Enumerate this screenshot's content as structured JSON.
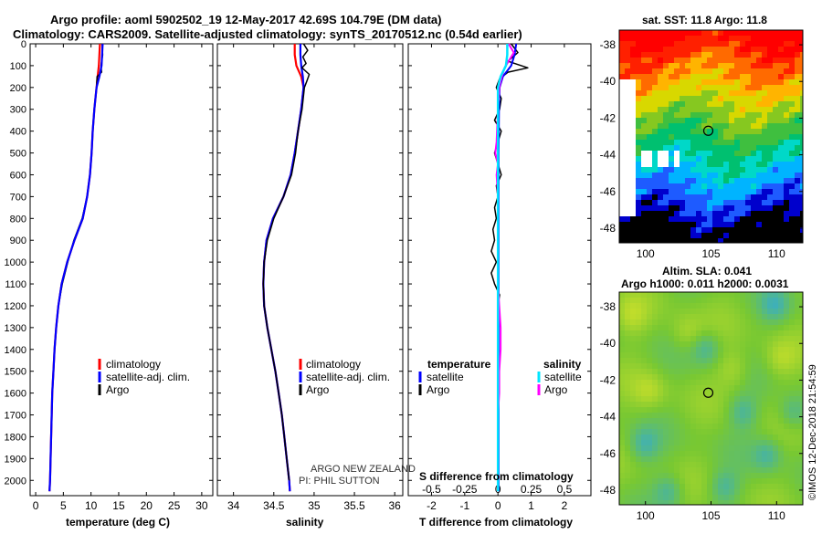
{
  "header": {
    "line1": "Argo profile: aoml 5902502_19 12-May-2017 42.69S 104.79E (DM data)",
    "line2": "Climatology: CARS2009. Satellite-adjusted climatology: synTS_20170512.nc (0.54d earlier)"
  },
  "depth_ticks": [
    0,
    100,
    200,
    300,
    400,
    500,
    600,
    700,
    800,
    900,
    1000,
    1100,
    1200,
    1300,
    1400,
    1500,
    1600,
    1700,
    1800,
    1900,
    2000
  ],
  "colors": {
    "climatology": "#ff0000",
    "satellite": "#0000ff",
    "argo": "#000000",
    "sat_salinity": "#00e5ff",
    "argo_salinity": "#ff00ff"
  },
  "chart_data": [
    {
      "type": "line",
      "id": "temperature",
      "xlabel": "temperature (deg C)",
      "ylabel": "depth",
      "xlim": [
        -1,
        32
      ],
      "ylim": [
        0,
        2070
      ],
      "xticks": [
        "0",
        "5",
        "10",
        "15",
        "20",
        "25",
        "30"
      ],
      "legend": [
        "climatology",
        "satellite-adj. clim.",
        "Argo"
      ],
      "series": [
        {
          "name": "climatology",
          "depth": [
            0,
            50,
            100,
            150,
            200,
            300,
            400,
            500,
            600,
            700,
            800,
            900,
            1000,
            1100,
            1200,
            1300,
            1400,
            1500,
            1600,
            1700,
            1800,
            1900,
            2000,
            2050
          ],
          "values": [
            11.6,
            11.5,
            11.4,
            11.2,
            11.0,
            10.6,
            10.3,
            10.1,
            9.8,
            9.3,
            8.5,
            7.0,
            5.7,
            4.7,
            4.1,
            3.7,
            3.4,
            3.2,
            3.0,
            2.9,
            2.8,
            2.7,
            2.6,
            2.5
          ]
        },
        {
          "name": "satellite-adj. clim.",
          "depth": [
            0,
            50,
            100,
            150,
            200,
            300,
            400,
            500,
            600,
            700,
            800,
            900,
            1000,
            1100,
            1200,
            1300,
            1400,
            1500,
            1600,
            1700,
            1800,
            1900,
            2000,
            2050
          ],
          "values": [
            12.1,
            12.0,
            11.9,
            11.5,
            11.0,
            10.6,
            10.3,
            10.1,
            9.8,
            9.3,
            8.5,
            7.0,
            5.7,
            4.7,
            4.1,
            3.7,
            3.4,
            3.2,
            3.0,
            2.9,
            2.8,
            2.7,
            2.6,
            2.5
          ]
        },
        {
          "name": "Argo",
          "depth": [
            0,
            50,
            100,
            130,
            150,
            200,
            300,
            400,
            500,
            600,
            700,
            800,
            900,
            1000,
            1100,
            1200,
            1300,
            1400,
            1500,
            1600,
            1700,
            1800,
            1900,
            2000
          ],
          "values": [
            12.0,
            12.1,
            11.8,
            11.9,
            11.1,
            11.0,
            10.6,
            10.3,
            10.1,
            9.8,
            9.3,
            8.4,
            6.9,
            5.8,
            4.8,
            4.1,
            3.7,
            3.4,
            3.2,
            3.0,
            2.9,
            2.8,
            2.7,
            2.6
          ]
        }
      ]
    },
    {
      "type": "line",
      "id": "salinity",
      "xlabel": "salinity",
      "ylabel": "depth",
      "xlim": [
        33.8,
        36.1
      ],
      "ylim": [
        0,
        2070
      ],
      "xticks": [
        "34",
        "34.5",
        "35",
        "35.5",
        "36"
      ],
      "legend": [
        "climatology",
        "satellite-adj. clim.",
        "Argo"
      ],
      "series": [
        {
          "name": "climatology",
          "depth": [
            0,
            50,
            100,
            150,
            200,
            300,
            400,
            500,
            600,
            700,
            800,
            900,
            1000,
            1100,
            1200,
            1300,
            1400,
            1500,
            1600,
            1700,
            1800,
            1900,
            2000,
            2050
          ],
          "values": [
            34.76,
            34.76,
            34.78,
            34.84,
            34.87,
            34.84,
            34.8,
            34.76,
            34.71,
            34.62,
            34.49,
            34.41,
            34.38,
            34.37,
            34.38,
            34.42,
            34.47,
            34.52,
            34.56,
            34.6,
            34.63,
            34.66,
            34.69,
            34.7
          ]
        },
        {
          "name": "satellite-adj. clim.",
          "depth": [
            0,
            50,
            100,
            150,
            200,
            300,
            400,
            500,
            600,
            700,
            800,
            900,
            1000,
            1100,
            1200,
            1300,
            1400,
            1500,
            1600,
            1700,
            1800,
            1900,
            2000,
            2050
          ],
          "values": [
            34.83,
            34.83,
            34.84,
            34.86,
            34.87,
            34.84,
            34.8,
            34.76,
            34.71,
            34.62,
            34.49,
            34.41,
            34.38,
            34.37,
            34.38,
            34.42,
            34.47,
            34.52,
            34.56,
            34.6,
            34.63,
            34.66,
            34.69,
            34.7
          ]
        },
        {
          "name": "Argo",
          "depth": [
            0,
            30,
            60,
            90,
            110,
            140,
            170,
            200,
            300,
            400,
            500,
            600,
            700,
            800,
            900,
            1000,
            1100,
            1200,
            1300,
            1400,
            1500,
            1600,
            1700,
            1800,
            1900,
            2000
          ],
          "values": [
            34.87,
            34.92,
            34.86,
            34.9,
            34.85,
            34.94,
            34.91,
            34.88,
            34.85,
            34.8,
            34.77,
            34.72,
            34.62,
            34.5,
            34.42,
            34.38,
            34.37,
            34.38,
            34.42,
            34.47,
            34.52,
            34.56,
            34.6,
            34.63,
            34.66,
            34.69
          ]
        }
      ],
      "annotations": [
        "ARGO NEW ZEALAND",
        "PI: PHIL SUTTON"
      ]
    },
    {
      "type": "line",
      "id": "difference",
      "xlabel": "T difference from climatology",
      "x2label": "S difference from climatology",
      "ylabel": "depth",
      "xlim": [
        -2.7,
        2.8
      ],
      "x2lim": [
        -0.675,
        0.7
      ],
      "ylim": [
        0,
        2070
      ],
      "xticks": [
        "-2",
        "-1",
        "0",
        "1",
        "2"
      ],
      "x2ticks": [
        "-0.5",
        "-0.25",
        "0",
        "0.25",
        "0.5"
      ],
      "legend_temperature": {
        "title": "temperature",
        "entries": [
          "satellite",
          "Argo"
        ]
      },
      "legend_salinity": {
        "title": "salinity",
        "entries": [
          "satellite",
          "Argo"
        ]
      },
      "series": [
        {
          "name": "temperature satellite",
          "axis": "T",
          "depth": [
            0,
            50,
            100,
            150,
            200,
            300,
            500,
            700,
            1000,
            1500,
            2000,
            2050
          ],
          "values": [
            0.55,
            0.5,
            0.4,
            0.15,
            0.05,
            0.03,
            0.02,
            0.02,
            0.02,
            0.02,
            0.02,
            0.02
          ]
        },
        {
          "name": "temperature Argo",
          "axis": "T",
          "depth": [
            0,
            40,
            80,
            110,
            130,
            160,
            200,
            250,
            300,
            350,
            400,
            450,
            500,
            550,
            600,
            650,
            700,
            750,
            800,
            850,
            900,
            950,
            1000,
            1050,
            1100,
            1150,
            1200,
            1300,
            1400,
            1500,
            1600,
            1700,
            1800,
            1900,
            2000
          ],
          "values": [
            0.4,
            0.6,
            0.3,
            0.9,
            0.3,
            0.05,
            -0.05,
            0.1,
            0.05,
            -0.1,
            0.1,
            0.0,
            -0.1,
            0.0,
            0.1,
            -0.05,
            0.0,
            -0.1,
            -0.05,
            -0.15,
            -0.1,
            -0.2,
            -0.05,
            -0.2,
            -0.1,
            0.05,
            0.0,
            0.0,
            0.0,
            0.0,
            0.0,
            0.0,
            0.0,
            0.0,
            0.0
          ]
        },
        {
          "name": "salinity satellite",
          "axis": "S",
          "depth": [
            0,
            50,
            100,
            150,
            200,
            300,
            500,
            700,
            1000,
            1500,
            2000,
            2050
          ],
          "values": [
            0.07,
            0.07,
            0.06,
            0.02,
            0.0,
            0.0,
            0.0,
            0.0,
            0.0,
            0.0,
            0.0,
            0.0
          ]
        },
        {
          "name": "salinity Argo",
          "axis": "S",
          "depth": [
            0,
            40,
            80,
            110,
            150,
            200,
            300,
            450,
            500,
            550,
            600,
            700,
            800,
            900,
            1000,
            1100,
            1200,
            1300,
            1400,
            1500,
            1600,
            1700,
            1800,
            1900,
            2000
          ],
          "values": [
            0.08,
            0.12,
            0.08,
            0.05,
            0.03,
            0.01,
            0.0,
            -0.01,
            -0.02,
            0.0,
            -0.01,
            0.0,
            0.0,
            0.0,
            0.0,
            0.0,
            0.01,
            0.02,
            0.02,
            0.01,
            0.01,
            0.0,
            0.0,
            0.0,
            0.0
          ]
        }
      ]
    },
    {
      "type": "heatmap",
      "id": "sst_map",
      "title": "sat. SST: 11.8 Argo: 11.8",
      "xticks": [
        "100",
        "105",
        "110"
      ],
      "yticks": [
        "-38",
        "-40",
        "-42",
        "-44",
        "-46",
        "-48"
      ],
      "xlim": [
        98,
        112
      ],
      "ylim": [
        -48.8,
        -37.2
      ],
      "marker": {
        "lon": 104.79,
        "lat": -42.69
      }
    },
    {
      "type": "heatmap",
      "id": "sla_map",
      "title_line1": "Altim. SLA: 0.041",
      "title_line2": "Argo h1000: 0.011 h2000: 0.0031",
      "xticks": [
        "100",
        "105",
        "110"
      ],
      "yticks": [
        "-38",
        "-40",
        "-42",
        "-44",
        "-46",
        "-48"
      ],
      "xlim": [
        98,
        112
      ],
      "ylim": [
        -48.8,
        -37.2
      ],
      "marker": {
        "lon": 104.79,
        "lat": -42.69
      }
    }
  ],
  "credit": "©IMOS 12-Dec-2018 21:54:59"
}
